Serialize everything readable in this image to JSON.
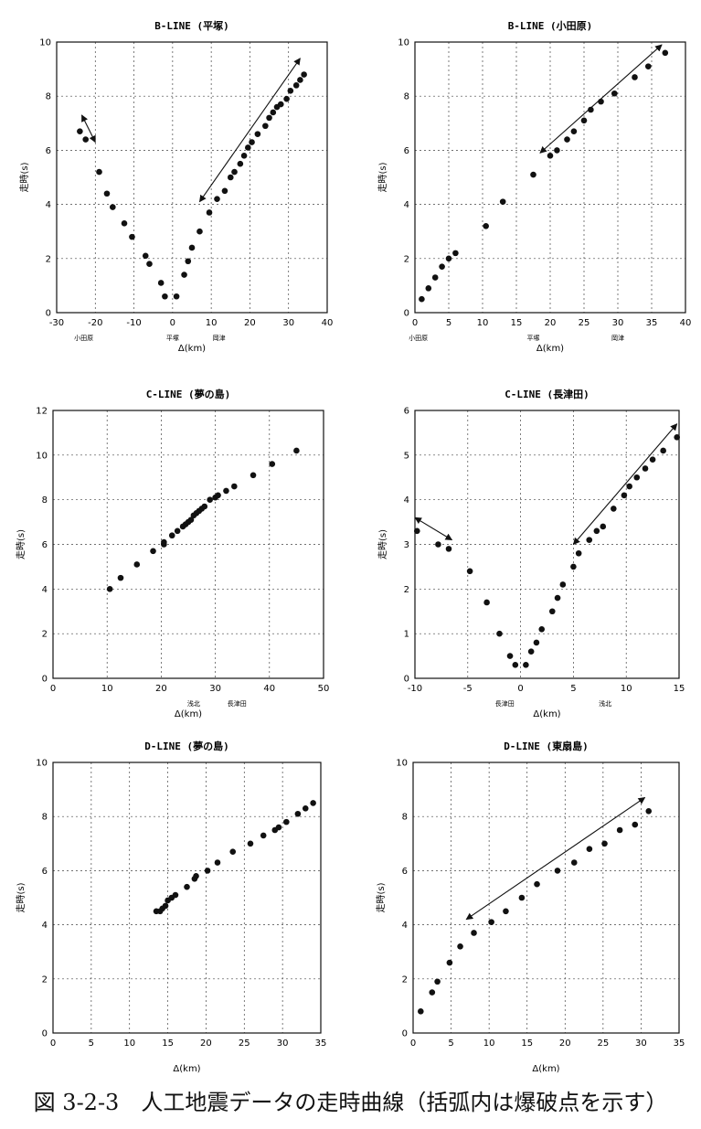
{
  "caption": "図 3-2-3　人工地震データの走時曲線（括弧内は爆破点を示す）",
  "chart_data": [
    {
      "type": "scatter",
      "title": "B-LINE (平塚)",
      "xlabel": "Δ(km)",
      "ylabel": "走時(s)",
      "xlim": [
        -30,
        40
      ],
      "ylim": [
        0,
        10
      ],
      "xticks": [
        -30,
        -20,
        -10,
        0,
        10,
        20,
        30,
        40
      ],
      "yticks": [
        0,
        2,
        4,
        6,
        8,
        10
      ],
      "grid": true,
      "x_markers": [
        {
          "x": -23,
          "label": "小田原"
        },
        {
          "x": 0,
          "label": "平塚"
        },
        {
          "x": 12,
          "label": "岡津"
        }
      ],
      "arrows": [
        {
          "from": [
            -23.5,
            7.3
          ],
          "to": [
            -20,
            6.3
          ]
        },
        {
          "from": [
            7,
            4.1
          ],
          "to": [
            33,
            9.4
          ]
        }
      ],
      "points": [
        [
          -24,
          6.7
        ],
        [
          -22.5,
          6.4
        ],
        [
          -19,
          5.2
        ],
        [
          -17,
          4.4
        ],
        [
          -15.5,
          3.9
        ],
        [
          -12.5,
          3.3
        ],
        [
          -10.5,
          2.8
        ],
        [
          -7,
          2.1
        ],
        [
          -6,
          1.8
        ],
        [
          -3,
          1.1
        ],
        [
          -2,
          0.6
        ],
        [
          1,
          0.6
        ],
        [
          3,
          1.4
        ],
        [
          4,
          1.9
        ],
        [
          5,
          2.4
        ],
        [
          7,
          3.0
        ],
        [
          9.5,
          3.7
        ],
        [
          11.5,
          4.2
        ],
        [
          13.5,
          4.5
        ],
        [
          15,
          5.0
        ],
        [
          16,
          5.2
        ],
        [
          17.5,
          5.5
        ],
        [
          18.5,
          5.8
        ],
        [
          19.5,
          6.1
        ],
        [
          20.5,
          6.3
        ],
        [
          22,
          6.6
        ],
        [
          24,
          6.9
        ],
        [
          25,
          7.2
        ],
        [
          26,
          7.4
        ],
        [
          27,
          7.6
        ],
        [
          28,
          7.7
        ],
        [
          29.5,
          7.9
        ],
        [
          30.5,
          8.2
        ],
        [
          32,
          8.4
        ],
        [
          33,
          8.6
        ],
        [
          34,
          8.8
        ]
      ]
    },
    {
      "type": "scatter",
      "title": "B-LINE (小田原)",
      "xlabel": "Δ(km)",
      "ylabel": "走時(s)",
      "xlim": [
        0,
        40
      ],
      "ylim": [
        0,
        10
      ],
      "xticks": [
        0,
        5,
        10,
        15,
        20,
        25,
        30,
        35,
        40
      ],
      "yticks": [
        0,
        2,
        4,
        6,
        8,
        10
      ],
      "grid": true,
      "x_markers": [
        {
          "x": 0.5,
          "label": "小田原"
        },
        {
          "x": 17.5,
          "label": "平塚"
        },
        {
          "x": 30,
          "label": "岡津"
        }
      ],
      "arrows": [
        {
          "from": [
            18.5,
            5.9
          ],
          "to": [
            36.5,
            9.9
          ]
        }
      ],
      "points": [
        [
          1,
          0.5
        ],
        [
          2,
          0.9
        ],
        [
          3,
          1.3
        ],
        [
          4,
          1.7
        ],
        [
          5,
          2.0
        ],
        [
          6,
          2.2
        ],
        [
          10.5,
          3.2
        ],
        [
          13,
          4.1
        ],
        [
          17.5,
          5.1
        ],
        [
          20,
          5.8
        ],
        [
          21,
          6.0
        ],
        [
          22.5,
          6.4
        ],
        [
          23.5,
          6.7
        ],
        [
          25,
          7.1
        ],
        [
          26,
          7.5
        ],
        [
          27.5,
          7.8
        ],
        [
          29.5,
          8.1
        ],
        [
          32.5,
          8.7
        ],
        [
          34.5,
          9.1
        ],
        [
          37,
          9.6
        ]
      ]
    },
    {
      "type": "scatter",
      "title": "C-LINE (夢の島)",
      "xlabel": "Δ(km)",
      "ylabel": "走時(s)",
      "xlim": [
        0,
        50
      ],
      "ylim": [
        0,
        12
      ],
      "xticks": [
        0,
        10,
        20,
        30,
        40,
        50
      ],
      "yticks": [
        0,
        2,
        4,
        6,
        8,
        10,
        12
      ],
      "grid": true,
      "x_markers": [
        {
          "x": 26,
          "label": "浅北"
        },
        {
          "x": 34,
          "label": "長津田"
        }
      ],
      "arrows": [],
      "points": [
        [
          10.5,
          4.0
        ],
        [
          12.5,
          4.5
        ],
        [
          15.5,
          5.1
        ],
        [
          18.5,
          5.7
        ],
        [
          20.5,
          6.0
        ],
        [
          20.5,
          6.1
        ],
        [
          22,
          6.4
        ],
        [
          23,
          6.6
        ],
        [
          24,
          6.8
        ],
        [
          24.5,
          6.9
        ],
        [
          25,
          7.0
        ],
        [
          25.5,
          7.1
        ],
        [
          26,
          7.3
        ],
        [
          26.5,
          7.4
        ],
        [
          27,
          7.5
        ],
        [
          27.5,
          7.6
        ],
        [
          28,
          7.7
        ],
        [
          29,
          8.0
        ],
        [
          30,
          8.1
        ],
        [
          30.5,
          8.2
        ],
        [
          32,
          8.4
        ],
        [
          33.5,
          8.6
        ],
        [
          37,
          9.1
        ],
        [
          40.5,
          9.6
        ],
        [
          45,
          10.2
        ]
      ]
    },
    {
      "type": "scatter",
      "title": "C-LINE (長津田)",
      "xlabel": "Δ(km)",
      "ylabel": "走時(s)",
      "xlim": [
        -10,
        15
      ],
      "ylim": [
        0,
        6
      ],
      "xticks": [
        -10,
        -5,
        0,
        5,
        10,
        15
      ],
      "yticks": [
        0,
        1,
        2,
        3,
        4,
        5,
        6
      ],
      "grid": true,
      "x_markers": [
        {
          "x": -1.5,
          "label": "長津田"
        },
        {
          "x": 8,
          "label": "浅北"
        }
      ],
      "arrows": [
        {
          "from": [
            -10,
            3.6
          ],
          "to": [
            -6.5,
            3.1
          ]
        },
        {
          "from": [
            5,
            3.0
          ],
          "to": [
            14.8,
            5.7
          ]
        }
      ],
      "points": [
        [
          -9.8,
          3.3
        ],
        [
          -7.8,
          3.0
        ],
        [
          -6.8,
          2.9
        ],
        [
          -4.8,
          2.4
        ],
        [
          -3.2,
          1.7
        ],
        [
          -2,
          1.0
        ],
        [
          -1,
          0.5
        ],
        [
          -0.5,
          0.3
        ],
        [
          0.5,
          0.3
        ],
        [
          1,
          0.6
        ],
        [
          1.5,
          0.8
        ],
        [
          2,
          1.1
        ],
        [
          3,
          1.5
        ],
        [
          3.5,
          1.8
        ],
        [
          4,
          2.1
        ],
        [
          5,
          2.5
        ],
        [
          5.5,
          2.8
        ],
        [
          6.5,
          3.1
        ],
        [
          7.2,
          3.3
        ],
        [
          7.8,
          3.4
        ],
        [
          8.8,
          3.8
        ],
        [
          9.8,
          4.1
        ],
        [
          10.3,
          4.3
        ],
        [
          11,
          4.5
        ],
        [
          11.8,
          4.7
        ],
        [
          12.5,
          4.9
        ],
        [
          13.5,
          5.1
        ],
        [
          14.8,
          5.4
        ]
      ]
    },
    {
      "type": "scatter",
      "title": "D-LINE (夢の島)",
      "xlabel": "Δ(km)",
      "ylabel": "走時(s)",
      "xlim": [
        0,
        35
      ],
      "ylim": [
        0,
        10
      ],
      "xticks": [
        0,
        5,
        10,
        15,
        20,
        25,
        30,
        35
      ],
      "yticks": [
        0,
        2,
        4,
        6,
        8,
        10
      ],
      "grid": true,
      "x_markers": [],
      "arrows": [],
      "points": [
        [
          13.5,
          4.5
        ],
        [
          14,
          4.5
        ],
        [
          14.3,
          4.6
        ],
        [
          14.7,
          4.7
        ],
        [
          15,
          4.9
        ],
        [
          15.5,
          5.0
        ],
        [
          16,
          5.1
        ],
        [
          17.5,
          5.4
        ],
        [
          18.5,
          5.7
        ],
        [
          18.7,
          5.8
        ],
        [
          20.2,
          6.0
        ],
        [
          21.5,
          6.3
        ],
        [
          23.5,
          6.7
        ],
        [
          25.8,
          7.0
        ],
        [
          27.5,
          7.3
        ],
        [
          29,
          7.5
        ],
        [
          29.5,
          7.6
        ],
        [
          30.5,
          7.8
        ],
        [
          32,
          8.1
        ],
        [
          33,
          8.3
        ],
        [
          34,
          8.5
        ]
      ]
    },
    {
      "type": "scatter",
      "title": "D-LINE (東扇島)",
      "xlabel": "Δ(km)",
      "ylabel": "走時(s)",
      "xlim": [
        0,
        35
      ],
      "ylim": [
        0,
        10
      ],
      "xticks": [
        0,
        5,
        10,
        15,
        20,
        25,
        30,
        35
      ],
      "yticks": [
        0,
        2,
        4,
        6,
        8,
        10
      ],
      "grid": true,
      "x_markers": [],
      "arrows": [
        {
          "from": [
            7,
            4.2
          ],
          "to": [
            30.5,
            8.7
          ]
        }
      ],
      "points": [
        [
          1,
          0.8
        ],
        [
          2.5,
          1.5
        ],
        [
          3.2,
          1.9
        ],
        [
          4.8,
          2.6
        ],
        [
          6.2,
          3.2
        ],
        [
          8,
          3.7
        ],
        [
          10.3,
          4.1
        ],
        [
          12.2,
          4.5
        ],
        [
          14.3,
          5.0
        ],
        [
          16.3,
          5.5
        ],
        [
          19,
          6.0
        ],
        [
          21.2,
          6.3
        ],
        [
          23.2,
          6.8
        ],
        [
          25.2,
          7.0
        ],
        [
          27.2,
          7.5
        ],
        [
          29.2,
          7.7
        ],
        [
          31,
          8.2
        ]
      ]
    }
  ]
}
